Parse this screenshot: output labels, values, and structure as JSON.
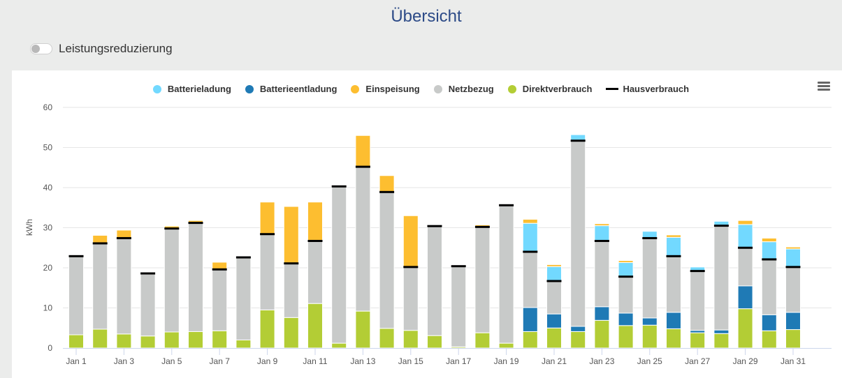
{
  "page": {
    "title": "Übersicht",
    "toggle": {
      "label": "Leistungsreduzierung",
      "on": false
    }
  },
  "chart_menu_icon": "hamburger-menu-icon",
  "legend": [
    {
      "key": "batterieladung",
      "label": "Batterieladung",
      "color": "#72d9ff",
      "symbol": "dot"
    },
    {
      "key": "batterieentladung",
      "label": "Batterieentladung",
      "color": "#1f7ab5",
      "symbol": "dot"
    },
    {
      "key": "einspeisung",
      "label": "Einspeisung",
      "color": "#fdbe30",
      "symbol": "dot"
    },
    {
      "key": "netzbezug",
      "label": "Netzbezug",
      "color": "#c8cac9",
      "symbol": "dot"
    },
    {
      "key": "direktverbrauch",
      "label": "Direktverbrauch",
      "color": "#b3cd35",
      "symbol": "dot"
    },
    {
      "key": "hausverbrauch",
      "label": "Hausverbrauch",
      "color": "#000000",
      "symbol": "line"
    }
  ],
  "chart_data": {
    "type": "bar",
    "stacked": true,
    "title": "",
    "xlabel": "",
    "ylabel": "kWh",
    "ylim": [
      0,
      60
    ],
    "yticks": [
      0,
      10,
      20,
      30,
      40,
      50,
      60
    ],
    "grid": true,
    "legend_position": "top-center",
    "categories": [
      "Jan 1",
      "Jan 2",
      "Jan 3",
      "Jan 4",
      "Jan 5",
      "Jan 6",
      "Jan 7",
      "Jan 8",
      "Jan 9",
      "Jan 10",
      "Jan 11",
      "Jan 12",
      "Jan 13",
      "Jan 14",
      "Jan 15",
      "Jan 16",
      "Jan 17",
      "Jan 18",
      "Jan 19",
      "Jan 20",
      "Jan 21",
      "Jan 22",
      "Jan 23",
      "Jan 24",
      "Jan 25",
      "Jan 26",
      "Jan 27",
      "Jan 28",
      "Jan 29",
      "Jan 30",
      "Jan 31"
    ],
    "xtick_labels": [
      "Jan 1",
      "Jan 3",
      "Jan 5",
      "Jan 7",
      "Jan 9",
      "Jan 11",
      "Jan 13",
      "Jan 15",
      "Jan 17",
      "Jan 19",
      "Jan 21",
      "Jan 23",
      "Jan 25",
      "Jan 27",
      "Jan 29",
      "Jan 31"
    ],
    "series": [
      {
        "name": "Direktverbrauch",
        "key": "direktverbrauch",
        "color": "#b3cd35",
        "values": [
          3.3,
          4.7,
          3.5,
          3.0,
          4.0,
          4.1,
          4.3,
          2.0,
          9.5,
          7.6,
          11.1,
          1.2,
          9.2,
          4.9,
          4.4,
          3.1,
          0.3,
          3.8,
          1.2,
          4.1,
          5.0,
          4.1,
          6.9,
          5.6,
          5.7,
          4.8,
          3.8,
          3.6,
          9.8,
          4.3,
          4.6
        ]
      },
      {
        "name": "Batterieentladung",
        "key": "batterieentladung",
        "color": "#1f7ab5",
        "values": [
          0,
          0,
          0,
          0,
          0,
          0,
          0,
          0,
          0,
          0,
          0,
          0,
          0,
          0,
          0,
          0,
          0,
          0,
          0,
          6.0,
          3.5,
          1.3,
          3.4,
          3.1,
          1.8,
          4.1,
          0.6,
          0.9,
          5.7,
          4.0,
          4.3
        ]
      },
      {
        "name": "Netzbezug",
        "key": "netzbezug",
        "color": "#c8cac9",
        "values": [
          19.6,
          21.4,
          23.9,
          15.6,
          25.8,
          27.1,
          15.3,
          20.6,
          18.9,
          13.5,
          15.6,
          39.1,
          36.0,
          34.0,
          15.8,
          27.3,
          20.1,
          26.4,
          34.4,
          13.9,
          8.2,
          46.3,
          16.4,
          9.1,
          19.9,
          14.0,
          14.8,
          26.0,
          9.5,
          13.8,
          11.3
        ]
      },
      {
        "name": "Batterieladung",
        "key": "batterieladung",
        "color": "#72d9ff",
        "values": [
          0,
          0,
          0,
          0,
          0,
          0,
          0,
          0,
          0,
          0,
          0,
          0,
          0,
          0,
          0,
          0,
          0,
          0,
          0,
          7.1,
          3.6,
          1.5,
          3.8,
          3.5,
          1.7,
          4.7,
          1.0,
          1.1,
          5.8,
          4.4,
          4.5
        ]
      },
      {
        "name": "Einspeisung",
        "key": "einspeisung",
        "color": "#fdbe30",
        "values": [
          0,
          2.0,
          2.0,
          0,
          0.6,
          0.6,
          1.8,
          0,
          8.0,
          14.2,
          9.7,
          0,
          7.8,
          4.1,
          12.8,
          0,
          0,
          0.5,
          0,
          1.0,
          0.5,
          0,
          0.5,
          0.5,
          0,
          0.6,
          0,
          0,
          1.0,
          0.9,
          0.5
        ]
      },
      {
        "name": "Hausverbrauch",
        "key": "hausverbrauch",
        "color": "#000000",
        "type": "line-marker",
        "values": [
          22.9,
          26.1,
          27.4,
          18.6,
          29.8,
          31.2,
          19.6,
          22.6,
          28.4,
          21.1,
          26.7,
          40.3,
          45.2,
          38.9,
          20.2,
          30.4,
          20.4,
          30.2,
          35.6,
          24.0,
          16.7,
          51.7,
          26.7,
          17.8,
          27.4,
          22.9,
          19.2,
          30.5,
          25.0,
          22.1,
          20.2
        ]
      }
    ]
  }
}
